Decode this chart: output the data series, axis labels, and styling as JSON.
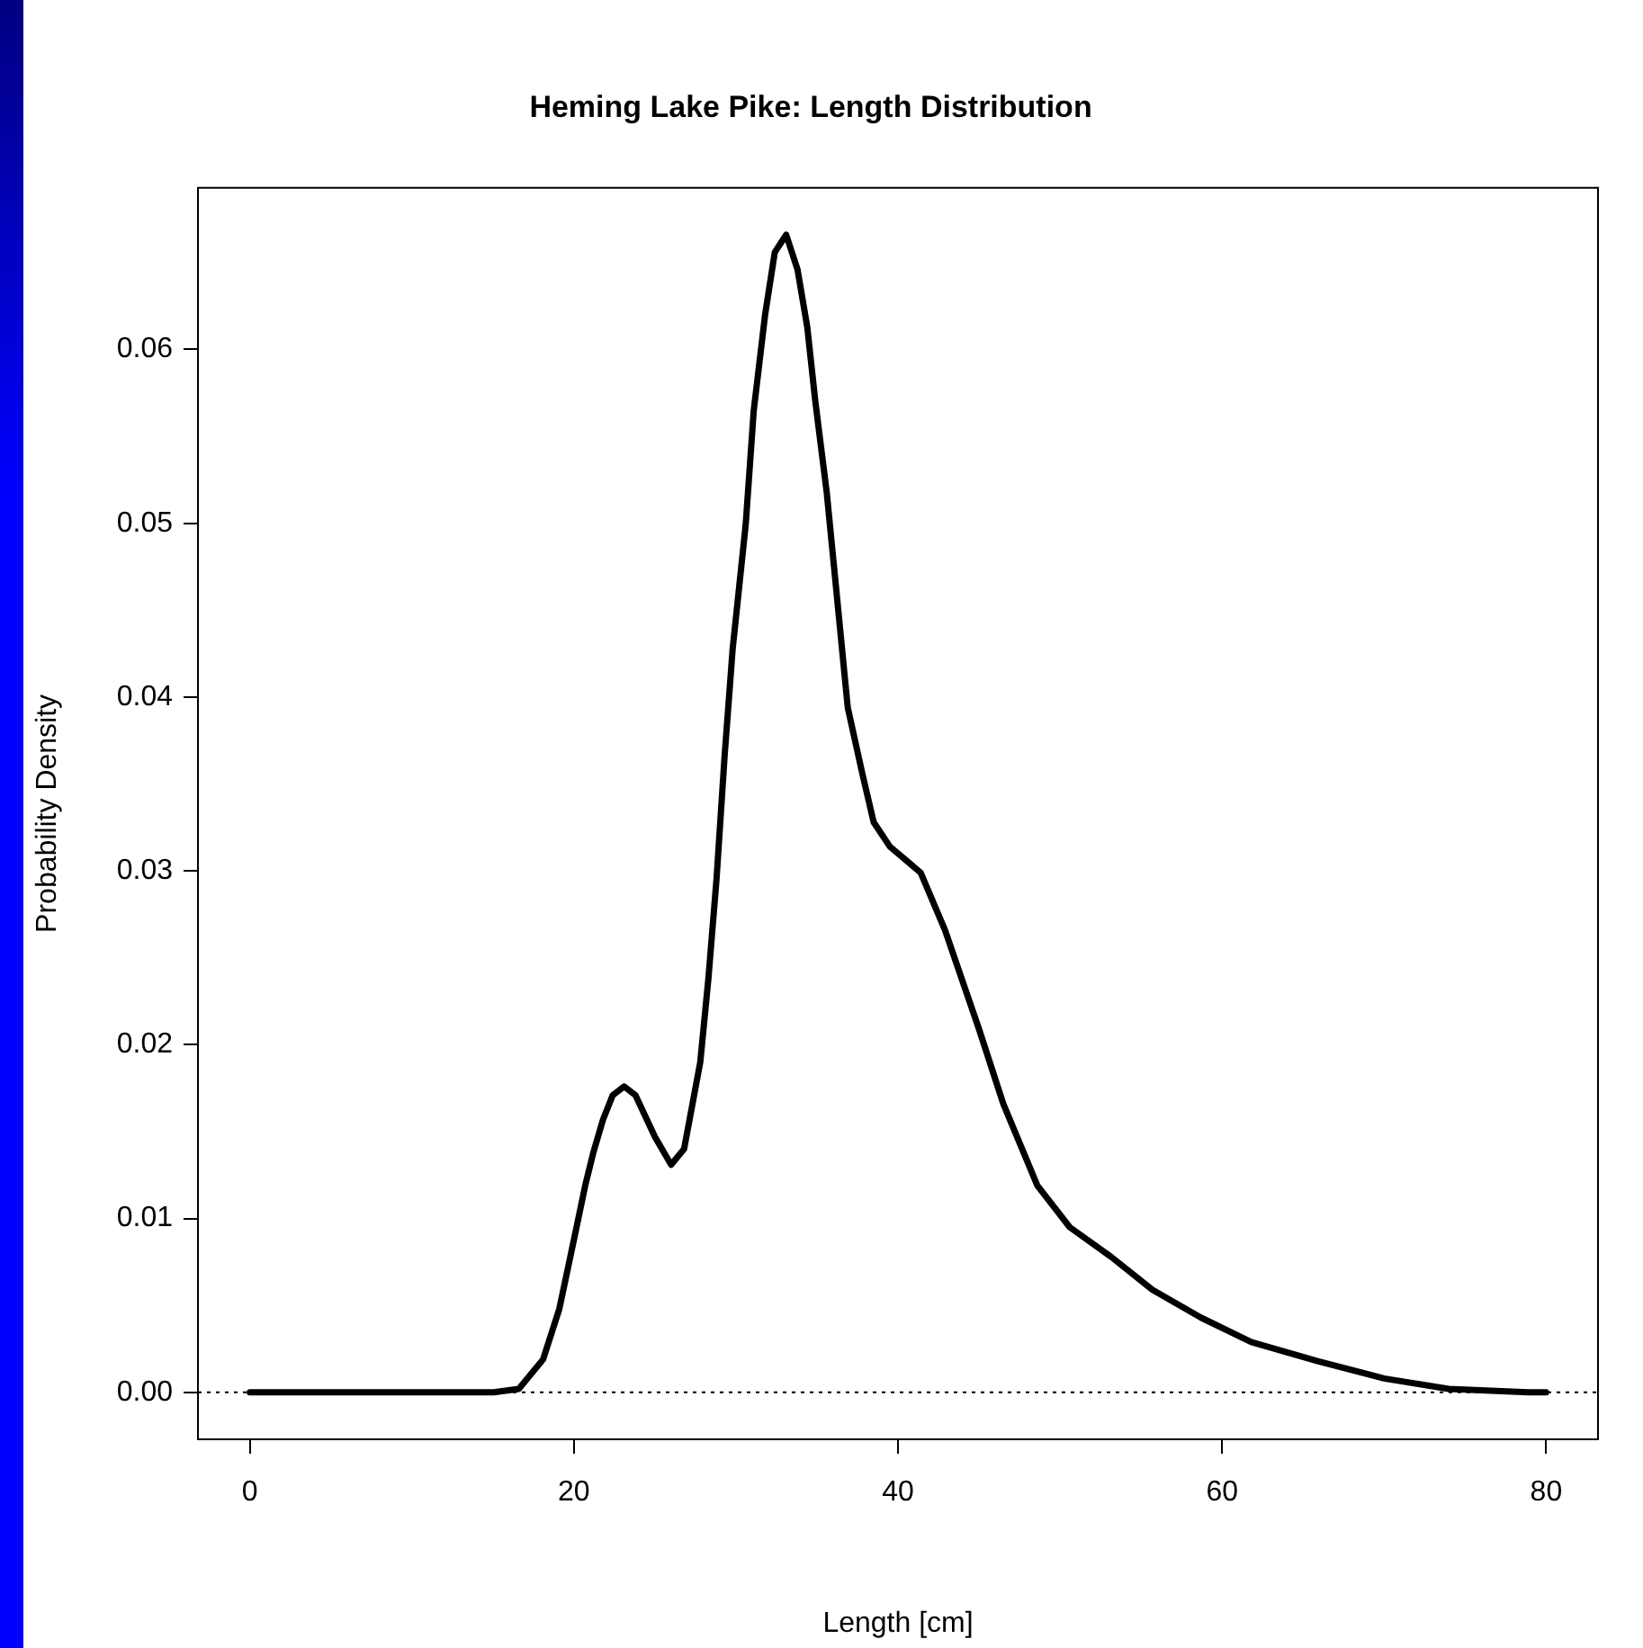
{
  "chart_data": {
    "type": "line",
    "title": "Heming Lake Pike: Length Distribution",
    "xlabel": "Length [cm]",
    "ylabel": "Probability Density",
    "series": [
      {
        "color": "#000000",
        "x": [
          0,
          15.05,
          16.6,
          18.1,
          19.1,
          20.05,
          20.7,
          21.2,
          21.8,
          22.4,
          23.1,
          23.8,
          25.0,
          26.0,
          26.8,
          27.8,
          28.3,
          28.8,
          29.3,
          29.8,
          30.6,
          31.1,
          31.8,
          32.4,
          33.1,
          33.8,
          34.4,
          34.9,
          35.6,
          36.2,
          36.9,
          37.8,
          38.5,
          39.5,
          41.4,
          42.9,
          45.0,
          46.5,
          48.6,
          50.6,
          53.15,
          55.7,
          58.7,
          61.8,
          65.9,
          70.0,
          74.0,
          78.9,
          80
        ],
        "values": [
          0,
          0,
          0.0002,
          0.0019,
          0.0048,
          0.009,
          0.0119,
          0.0138,
          0.0157,
          0.0171,
          0.0176,
          0.0171,
          0.0147,
          0.0131,
          0.014,
          0.019,
          0.0238,
          0.0295,
          0.0366,
          0.0428,
          0.0499,
          0.0565,
          0.062,
          0.0656,
          0.0666,
          0.0646,
          0.0613,
          0.057,
          0.0518,
          0.0461,
          0.0394,
          0.0356,
          0.0328,
          0.0314,
          0.0299,
          0.0266,
          0.0209,
          0.0166,
          0.0119,
          0.0095,
          0.0078,
          0.0059,
          0.0043,
          0.0029,
          0.0018,
          0.0008,
          0.0002,
          0,
          0
        ]
      }
    ],
    "xlim": [
      -3.2,
      83.2
    ],
    "xticks": [
      0,
      20,
      40,
      60,
      80
    ],
    "ylim": [
      -0.0027,
      0.0693
    ],
    "yticks": [
      {
        "value": 0,
        "label": "0.00"
      },
      {
        "value": 0.01,
        "label": "0.01"
      },
      {
        "value": 0.02,
        "label": "0.02"
      },
      {
        "value": 0.03,
        "label": "0.03"
      },
      {
        "value": 0.04,
        "label": "0.04"
      },
      {
        "value": 0.05,
        "label": "0.05"
      },
      {
        "value": 0.06,
        "label": "0.06"
      }
    ],
    "ref_lines": [
      {
        "axis": "y",
        "value": 0,
        "color": "#000000",
        "line_style": "dotted"
      }
    ],
    "grid": false,
    "legend": false,
    "marker": "none",
    "line_style": "solid"
  }
}
